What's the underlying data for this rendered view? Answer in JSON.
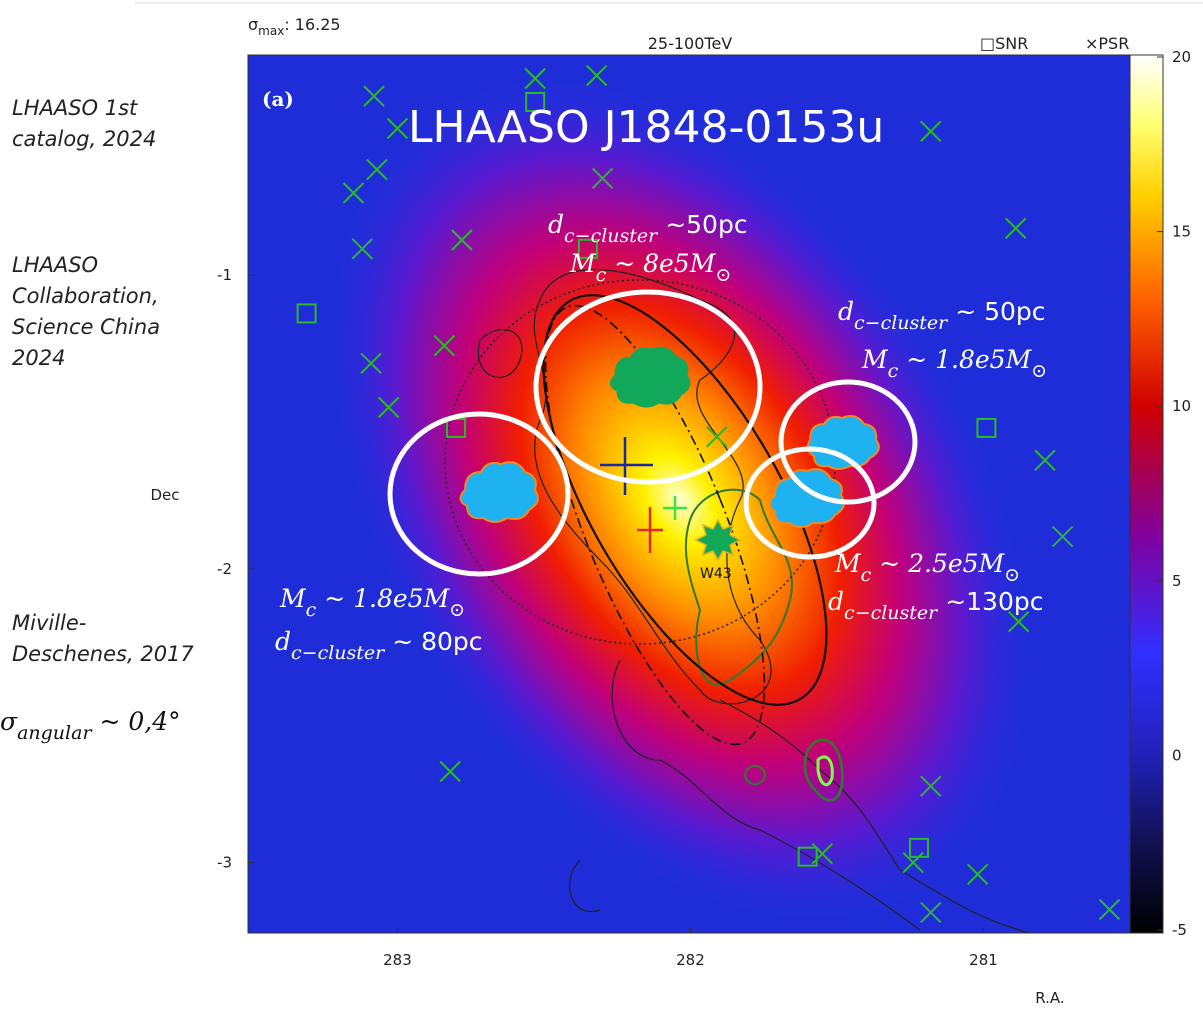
{
  "header": {
    "sigma": "σ",
    "sigma_sub": "max",
    "sigma_value": ": 16.25",
    "energy": "25-100TeV",
    "panel": "(a)",
    "source": "LHAASO J1848-0153u",
    "w43": "W43"
  },
  "references": [
    {
      "lines": [
        "LHAASO 1st",
        "catalog, 2024"
      ]
    },
    {
      "lines": [
        "LHAASO",
        "Collaboration,",
        "Science China",
        "2024"
      ]
    },
    {
      "lines": [
        "Miville-",
        "Deschenes,  2017"
      ]
    }
  ],
  "annotations": [
    [
      {
        "i": "d"
      },
      {
        "sub": "c−cluster"
      },
      {
        "t": " ~50pc"
      }
    ],
    [
      {
        "i": "M"
      },
      {
        "sub": "c"
      },
      {
        "i": " ~ 8e5M"
      },
      {
        "sub": "⊙"
      }
    ],
    [
      {
        "i": "d"
      },
      {
        "sub": "c−cluster"
      },
      {
        "t": " ~ 50pc"
      }
    ],
    [
      {
        "i": "M"
      },
      {
        "sub": "c"
      },
      {
        "i": " ~ 1.8e5M"
      },
      {
        "sub": "⊙"
      }
    ],
    [
      {
        "i": "M"
      },
      {
        "sub": "c"
      },
      {
        "i": " ~ 2.5e5M"
      },
      {
        "sub": "⊙"
      }
    ],
    [
      {
        "i": "d"
      },
      {
        "sub": "c−cluster"
      },
      {
        "t": " ~130pc"
      }
    ],
    [
      {
        "i": "M"
      },
      {
        "sub": "c"
      },
      {
        "i": " ~ 1.8e5M"
      },
      {
        "sub": "⊙"
      }
    ],
    [
      {
        "i": "d"
      },
      {
        "sub": "c−cluster"
      },
      {
        "t": " ~ 80pc"
      }
    ],
    [
      {
        "i": "σ"
      },
      {
        "sub": "angular"
      },
      {
        "i": " ~ 0,4°"
      }
    ]
  ],
  "chart_data": {
    "type": "heatmap",
    "xlabel": "R.A.",
    "ylabel": "Dec",
    "xlim": [
      283.51,
      280.5
    ],
    "ylim": [
      -0.25,
      -3.24
    ],
    "xticks": [
      283,
      282,
      281
    ],
    "yticks": [
      -1,
      -2,
      -3
    ],
    "colorbar": {
      "lim": [
        -5,
        20
      ],
      "ticks": [
        -5,
        0,
        5,
        10,
        15,
        20
      ]
    },
    "series": [
      {
        "name": "SNR",
        "symbol": "□",
        "color": "#2bb82b",
        "x": [
          282.53,
          283.31,
          282.35,
          282.8,
          280.99,
          281.6,
          281.22
        ],
        "y": [
          -0.41,
          -1.13,
          -0.91,
          -1.52,
          -1.52,
          -2.98,
          -2.95
        ]
      },
      {
        "name": "PSR",
        "symbol": "×",
        "color": "#2bb82b",
        "x": [
          283.08,
          282.53,
          282.32,
          283.0,
          283.07,
          283.15,
          282.3,
          283.12,
          282.78,
          280.89,
          282.84,
          283.09,
          283.03,
          281.91,
          280.79,
          280.73,
          280.88,
          282.82,
          281.18,
          281.55,
          281.24,
          281.02,
          281.18,
          280.57,
          281.18
        ],
        "y": [
          -0.39,
          -0.33,
          -0.32,
          -0.5,
          -0.64,
          -0.72,
          -0.67,
          -0.91,
          -0.88,
          -0.84,
          -1.24,
          -1.3,
          -1.45,
          -1.55,
          -1.63,
          -1.89,
          -2.18,
          -2.69,
          -2.74,
          -2.97,
          -3.0,
          -3.04,
          -3.17,
          -3.16,
          -0.51
        ]
      }
    ]
  }
}
